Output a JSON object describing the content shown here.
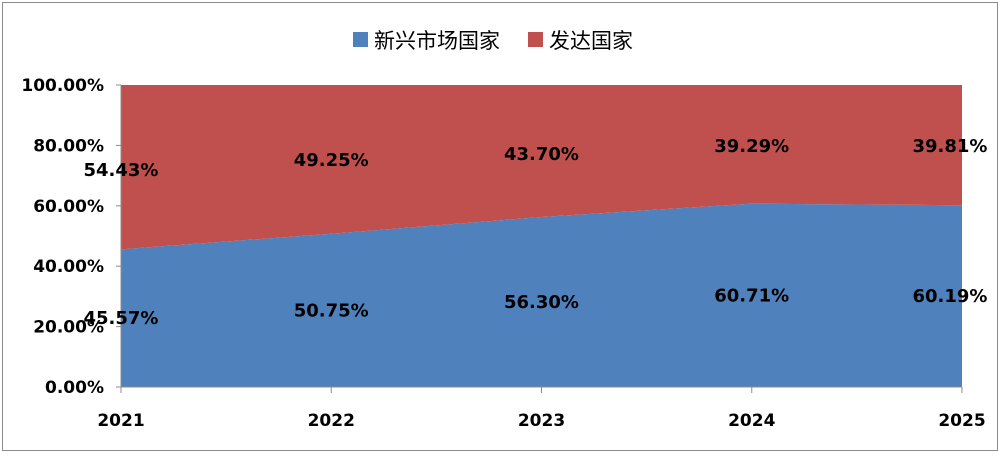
{
  "chart_data": {
    "type": "area",
    "stacked": "percent",
    "categories": [
      "2021",
      "2022",
      "2023",
      "2024",
      "2025"
    ],
    "series": [
      {
        "name": "新兴市场国家",
        "color": "#4f81bd",
        "values": [
          45.57,
          50.75,
          56.3,
          60.71,
          60.19
        ],
        "labels": [
          "45.57%",
          "50.75%",
          "56.30%",
          "60.71%",
          "60.19%"
        ]
      },
      {
        "name": "发达国家",
        "color": "#c0504d",
        "values": [
          54.43,
          49.25,
          43.7,
          39.29,
          39.81
        ],
        "labels": [
          "54.43%",
          "49.25%",
          "43.70%",
          "39.29%",
          "39.81%"
        ]
      }
    ],
    "y_ticks": [
      "0.00%",
      "20.00%",
      "40.00%",
      "60.00%",
      "80.00%",
      "100.00%"
    ],
    "ylim": [
      0,
      100
    ],
    "legend": "top-center",
    "grid": false
  }
}
